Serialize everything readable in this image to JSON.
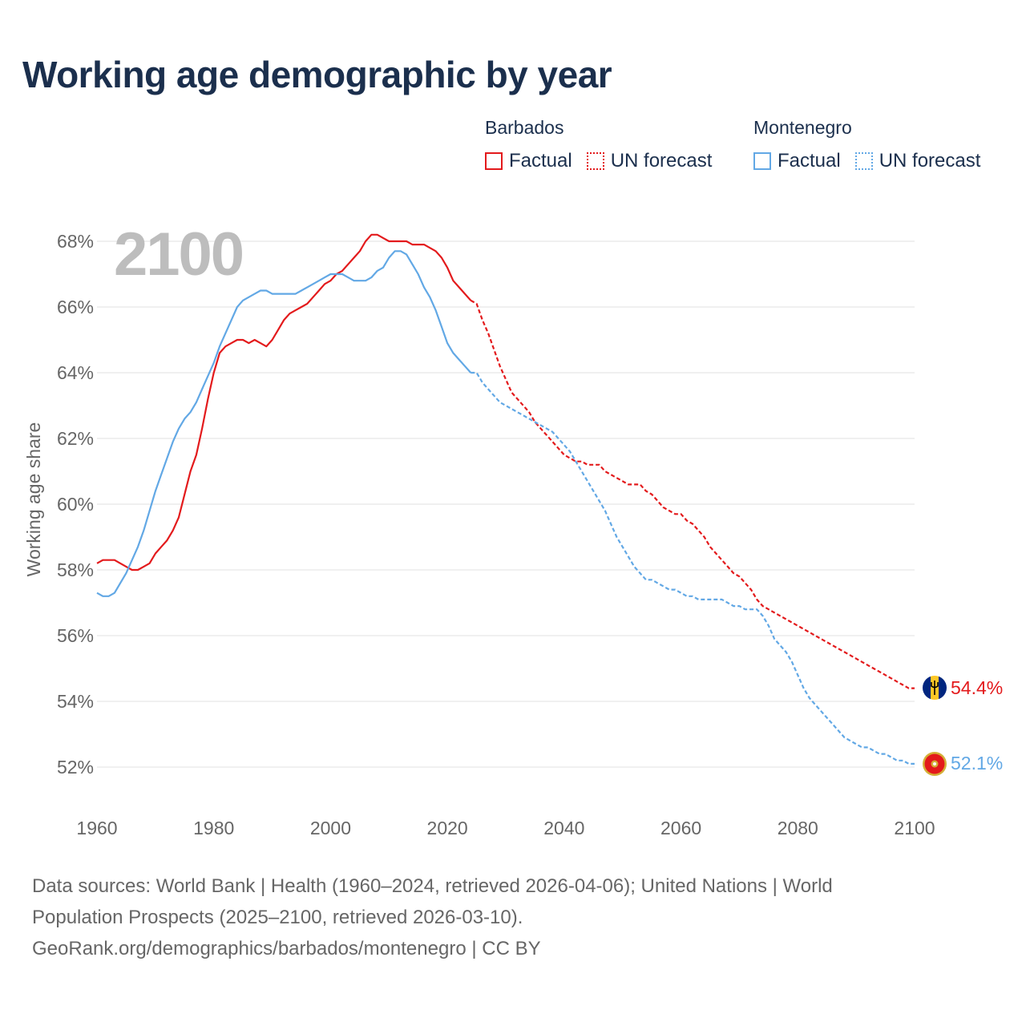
{
  "chart_data": {
    "type": "line",
    "title": "Working age demographic by year",
    "year_watermark": "2100",
    "ylabel": "Working age share",
    "xlabel": "",
    "xlim": [
      1960,
      2100
    ],
    "ylim": [
      51,
      68.5
    ],
    "x_ticks": [
      1960,
      1980,
      2000,
      2020,
      2040,
      2060,
      2080,
      2100
    ],
    "x_tick_labels": [
      "1960",
      "1980",
      "2000",
      "2020",
      "2040",
      "2060",
      "2080",
      "2100"
    ],
    "y_ticks": [
      52,
      54,
      56,
      58,
      60,
      62,
      64,
      66,
      68
    ],
    "y_tick_labels": [
      "52%",
      "54%",
      "56%",
      "58%",
      "60%",
      "62%",
      "64%",
      "66%",
      "68%"
    ],
    "grid": true,
    "legend": {
      "groups": [
        {
          "name": "Barbados",
          "color": "#e31a1c",
          "factual_label": "Factual",
          "forecast_label": "UN forecast"
        },
        {
          "name": "Montenegro",
          "color": "#62a8e5",
          "factual_label": "Factual",
          "forecast_label": "UN forecast"
        }
      ]
    },
    "series": [
      {
        "name": "Barbados",
        "color": "#e31a1c",
        "end_label": "54.4%",
        "factual": {
          "x": [
            1960,
            1961,
            1962,
            1963,
            1964,
            1965,
            1966,
            1967,
            1968,
            1969,
            1970,
            1971,
            1972,
            1973,
            1974,
            1975,
            1976,
            1977,
            1978,
            1979,
            1980,
            1981,
            1982,
            1983,
            1984,
            1985,
            1986,
            1987,
            1988,
            1989,
            1990,
            1991,
            1992,
            1993,
            1994,
            1995,
            1996,
            1997,
            1998,
            1999,
            2000,
            2001,
            2002,
            2003,
            2004,
            2005,
            2006,
            2007,
            2008,
            2009,
            2010,
            2011,
            2012,
            2013,
            2014,
            2015,
            2016,
            2017,
            2018,
            2019,
            2020,
            2021,
            2022,
            2023,
            2024
          ],
          "y": [
            58.2,
            58.3,
            58.3,
            58.3,
            58.2,
            58.1,
            58.0,
            58.0,
            58.1,
            58.2,
            58.5,
            58.7,
            58.9,
            59.2,
            59.6,
            60.3,
            61.0,
            61.5,
            62.3,
            63.2,
            64.0,
            64.6,
            64.8,
            64.9,
            65.0,
            65.0,
            64.9,
            65.0,
            64.9,
            64.8,
            65.0,
            65.3,
            65.6,
            65.8,
            65.9,
            66.0,
            66.1,
            66.3,
            66.5,
            66.7,
            66.8,
            67.0,
            67.1,
            67.3,
            67.5,
            67.7,
            68.0,
            68.2,
            68.2,
            68.1,
            68.0,
            68.0,
            68.0,
            68.0,
            67.9,
            67.9,
            67.9,
            67.8,
            67.7,
            67.5,
            67.2,
            66.8,
            66.6,
            66.4,
            66.2
          ]
        },
        "forecast": {
          "x": [
            2024,
            2025,
            2026,
            2027,
            2028,
            2029,
            2030,
            2031,
            2032,
            2033,
            2034,
            2035,
            2036,
            2037,
            2038,
            2039,
            2040,
            2041,
            2042,
            2043,
            2044,
            2045,
            2046,
            2047,
            2048,
            2049,
            2050,
            2051,
            2052,
            2053,
            2054,
            2055,
            2056,
            2057,
            2058,
            2059,
            2060,
            2061,
            2062,
            2063,
            2064,
            2065,
            2066,
            2067,
            2068,
            2069,
            2070,
            2071,
            2072,
            2073,
            2074,
            2075,
            2076,
            2077,
            2078,
            2079,
            2080,
            2081,
            2082,
            2083,
            2084,
            2085,
            2086,
            2087,
            2088,
            2089,
            2090,
            2091,
            2092,
            2093,
            2094,
            2095,
            2096,
            2097,
            2098,
            2099,
            2100
          ],
          "y": [
            66.2,
            66.1,
            65.6,
            65.2,
            64.7,
            64.2,
            63.8,
            63.4,
            63.2,
            63.0,
            62.8,
            62.5,
            62.3,
            62.1,
            61.9,
            61.7,
            61.5,
            61.4,
            61.3,
            61.3,
            61.2,
            61.2,
            61.2,
            61.0,
            60.9,
            60.8,
            60.7,
            60.6,
            60.6,
            60.6,
            60.4,
            60.3,
            60.1,
            59.9,
            59.8,
            59.7,
            59.7,
            59.5,
            59.4,
            59.2,
            59.0,
            58.7,
            58.5,
            58.3,
            58.1,
            57.9,
            57.8,
            57.6,
            57.4,
            57.1,
            56.9,
            56.8,
            56.7,
            56.6,
            56.5,
            56.4,
            56.3,
            56.2,
            56.1,
            56.0,
            55.9,
            55.8,
            55.7,
            55.6,
            55.5,
            55.4,
            55.3,
            55.2,
            55.1,
            55.0,
            54.9,
            54.8,
            54.7,
            54.6,
            54.5,
            54.4,
            54.4
          ]
        }
      },
      {
        "name": "Montenegro",
        "color": "#62a8e5",
        "end_label": "52.1%",
        "factual": {
          "x": [
            1960,
            1961,
            1962,
            1963,
            1964,
            1965,
            1966,
            1967,
            1968,
            1969,
            1970,
            1971,
            1972,
            1973,
            1974,
            1975,
            1976,
            1977,
            1978,
            1979,
            1980,
            1981,
            1982,
            1983,
            1984,
            1985,
            1986,
            1987,
            1988,
            1989,
            1990,
            1991,
            1992,
            1993,
            1994,
            1995,
            1996,
            1997,
            1998,
            1999,
            2000,
            2001,
            2002,
            2003,
            2004,
            2005,
            2006,
            2007,
            2008,
            2009,
            2010,
            2011,
            2012,
            2013,
            2014,
            2015,
            2016,
            2017,
            2018,
            2019,
            2020,
            2021,
            2022,
            2023,
            2024
          ],
          "y": [
            57.3,
            57.2,
            57.2,
            57.3,
            57.6,
            57.9,
            58.3,
            58.7,
            59.2,
            59.8,
            60.4,
            60.9,
            61.4,
            61.9,
            62.3,
            62.6,
            62.8,
            63.1,
            63.5,
            63.9,
            64.3,
            64.8,
            65.2,
            65.6,
            66.0,
            66.2,
            66.3,
            66.4,
            66.5,
            66.5,
            66.4,
            66.4,
            66.4,
            66.4,
            66.4,
            66.5,
            66.6,
            66.7,
            66.8,
            66.9,
            67.0,
            67.0,
            67.0,
            66.9,
            66.8,
            66.8,
            66.8,
            66.9,
            67.1,
            67.2,
            67.5,
            67.7,
            67.7,
            67.6,
            67.3,
            67.0,
            66.6,
            66.3,
            65.9,
            65.4,
            64.9,
            64.6,
            64.4,
            64.2,
            64.0
          ]
        },
        "forecast": {
          "x": [
            2024,
            2025,
            2026,
            2027,
            2028,
            2029,
            2030,
            2031,
            2032,
            2033,
            2034,
            2035,
            2036,
            2037,
            2038,
            2039,
            2040,
            2041,
            2042,
            2043,
            2044,
            2045,
            2046,
            2047,
            2048,
            2049,
            2050,
            2051,
            2052,
            2053,
            2054,
            2055,
            2056,
            2057,
            2058,
            2059,
            2060,
            2061,
            2062,
            2063,
            2064,
            2065,
            2066,
            2067,
            2068,
            2069,
            2070,
            2071,
            2072,
            2073,
            2074,
            2075,
            2076,
            2077,
            2078,
            2079,
            2080,
            2081,
            2082,
            2083,
            2084,
            2085,
            2086,
            2087,
            2088,
            2089,
            2090,
            2091,
            2092,
            2093,
            2094,
            2095,
            2096,
            2097,
            2098,
            2099,
            2100
          ],
          "y": [
            64.0,
            64.0,
            63.7,
            63.5,
            63.3,
            63.1,
            63.0,
            62.9,
            62.8,
            62.7,
            62.6,
            62.5,
            62.4,
            62.3,
            62.2,
            62.0,
            61.8,
            61.6,
            61.3,
            61.0,
            60.7,
            60.4,
            60.1,
            59.8,
            59.4,
            59.0,
            58.7,
            58.4,
            58.1,
            57.9,
            57.7,
            57.7,
            57.6,
            57.5,
            57.4,
            57.4,
            57.3,
            57.2,
            57.2,
            57.1,
            57.1,
            57.1,
            57.1,
            57.1,
            57.0,
            56.9,
            56.9,
            56.8,
            56.8,
            56.8,
            56.6,
            56.3,
            55.9,
            55.7,
            55.5,
            55.2,
            54.8,
            54.4,
            54.1,
            53.9,
            53.7,
            53.5,
            53.3,
            53.1,
            52.9,
            52.8,
            52.7,
            52.6,
            52.6,
            52.5,
            52.4,
            52.4,
            52.3,
            52.2,
            52.2,
            52.1,
            52.1
          ]
        }
      }
    ]
  },
  "footer": {
    "line1": "Data sources: World Bank | Health (1960–2024, retrieved 2026-04-06); United Nations | World",
    "line2": "Population Prospects (2025–2100, retrieved 2026-03-10).",
    "line3": "GeoRank.org/demographics/barbados/montenegro | CC BY"
  }
}
